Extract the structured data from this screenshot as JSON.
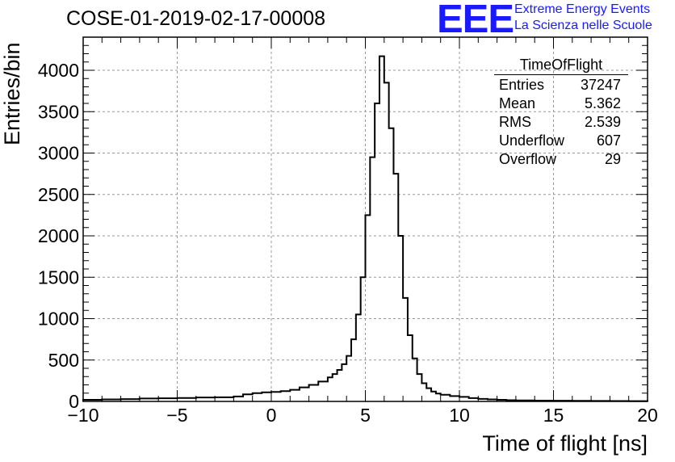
{
  "header": {
    "title": "COSE-01-2019-02-17-00008",
    "logo_text": "EEE",
    "logo_line1": "Extreme Energy Events",
    "logo_line2": "La Scienza nelle Scuole"
  },
  "stats": {
    "title": "TimeOfFlight",
    "rows": [
      {
        "label": "Entries",
        "value": "37247"
      },
      {
        "label": "Mean",
        "value": "5.362"
      },
      {
        "label": "RMS",
        "value": "2.539"
      },
      {
        "label": "Underflow",
        "value": "607"
      },
      {
        "label": "Overflow",
        "value": "29"
      }
    ]
  },
  "chart_data": {
    "type": "bar",
    "title": "COSE-01-2019-02-17-00008",
    "xlabel": "Time of flight [ns]",
    "ylabel": "Entries/bin",
    "xlim": [
      -10,
      20
    ],
    "ylim": [
      0,
      4400
    ],
    "grid": true,
    "bin_width": 0.25,
    "x_ticks": [
      -10,
      -5,
      0,
      5,
      10,
      15,
      20
    ],
    "y_ticks": [
      0,
      500,
      1000,
      1500,
      2000,
      2500,
      3000,
      3500,
      4000
    ],
    "line_color": "#000000",
    "bins": [
      [
        -10.0,
        20
      ],
      [
        -9.0,
        25
      ],
      [
        -8.0,
        28
      ],
      [
        -7.0,
        35
      ],
      [
        -6.0,
        38
      ],
      [
        -5.0,
        42
      ],
      [
        -4.0,
        48
      ],
      [
        -3.0,
        50
      ],
      [
        -2.0,
        60
      ],
      [
        -1.5,
        85
      ],
      [
        -1.0,
        100
      ],
      [
        -0.5,
        110
      ],
      [
        0.0,
        115
      ],
      [
        0.5,
        125
      ],
      [
        1.0,
        140
      ],
      [
        1.5,
        170
      ],
      [
        2.0,
        200
      ],
      [
        2.5,
        240
      ],
      [
        3.0,
        290
      ],
      [
        3.25,
        330
      ],
      [
        3.5,
        380
      ],
      [
        3.75,
        450
      ],
      [
        4.0,
        550
      ],
      [
        4.25,
        750
      ],
      [
        4.5,
        1050
      ],
      [
        4.75,
        1500
      ],
      [
        5.0,
        2250
      ],
      [
        5.25,
        2950
      ],
      [
        5.5,
        3600
      ],
      [
        5.75,
        4170
      ],
      [
        6.0,
        3850
      ],
      [
        6.25,
        3300
      ],
      [
        6.5,
        2750
      ],
      [
        6.75,
        2000
      ],
      [
        7.0,
        1250
      ],
      [
        7.25,
        800
      ],
      [
        7.5,
        520
      ],
      [
        7.75,
        330
      ],
      [
        8.0,
        220
      ],
      [
        8.25,
        160
      ],
      [
        8.5,
        120
      ],
      [
        8.75,
        95
      ],
      [
        9.0,
        80
      ],
      [
        9.5,
        65
      ],
      [
        10.0,
        55
      ],
      [
        10.5,
        40
      ],
      [
        11.0,
        30
      ],
      [
        11.5,
        25
      ],
      [
        12.0,
        20
      ],
      [
        12.5,
        15
      ],
      [
        13.0,
        12
      ],
      [
        14.0,
        10
      ],
      [
        15.0,
        8
      ],
      [
        16.0,
        7
      ],
      [
        17.0,
        6
      ],
      [
        18.0,
        5
      ],
      [
        19.0,
        4
      ]
    ]
  }
}
